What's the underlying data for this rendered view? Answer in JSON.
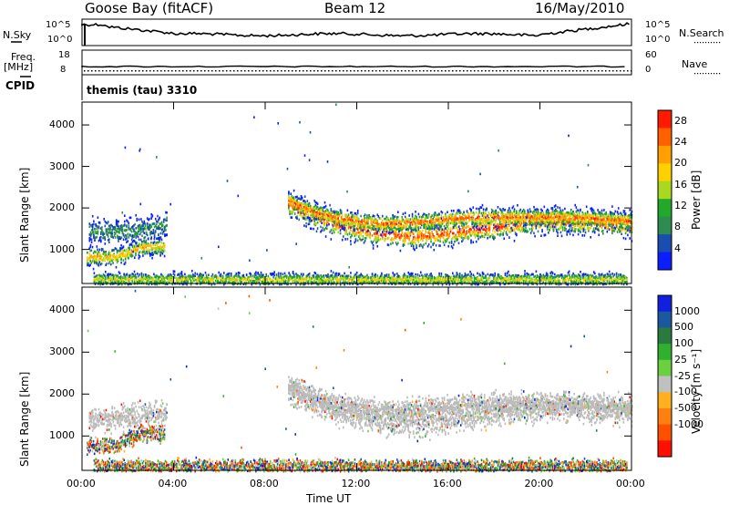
{
  "header": {
    "title": "Goose Bay (fitACF)",
    "beam": "Beam 12",
    "date": "16/May/2010"
  },
  "summary_panel": {
    "n_sky_label": "N.Sky",
    "n_search_label": "N.Search",
    "n_ticks_left": [
      "10^5",
      "10^0"
    ],
    "n_ticks_right": [
      "10^5",
      "10^0"
    ],
    "freq_label": "Freq.",
    "freq_unit": "[MHz]",
    "freq_ticks": [
      "18",
      "8"
    ],
    "nave_label": "Nave",
    "nave_ticks": [
      "60",
      "0"
    ],
    "cpid_label": "CPID",
    "cpid_value": "themis (tau) 3310"
  },
  "colors": {
    "power_scale": [
      "#0a1eff",
      "#1a4db0",
      "#2e8c50",
      "#22a82a",
      "#a8d820",
      "#ffd000",
      "#ffa000",
      "#ff6000",
      "#ff1a00"
    ],
    "velocity_scale": [
      "#1020e0",
      "#1a58a0",
      "#2a7a40",
      "#2fb02f",
      "#6ad040",
      "#c0c0c0",
      "#ffb020",
      "#ff8010",
      "#ff5000",
      "#ff1000"
    ],
    "ground_scatter": "#bbbbbb"
  },
  "chart_data": [
    {
      "type": "heatmap",
      "panel": "power",
      "xlabel": "",
      "ylabel": "Slant Range [km]",
      "x_ticks": [
        "00:00",
        "04:00",
        "08:00",
        "12:00",
        "16:00",
        "20:00",
        "00:00"
      ],
      "xlim_hours": [
        0,
        24
      ],
      "y_ticks": [
        1000,
        2000,
        3000,
        4000
      ],
      "ylim": [
        180,
        4550
      ],
      "colorbar": {
        "label": "Power [dB]",
        "ticks": [
          4,
          8,
          12,
          16,
          20,
          24,
          28
        ],
        "range": [
          0,
          30
        ]
      },
      "bands": [
        {
          "start": 9.0,
          "end": 24.0,
          "range_path": [
            [
              9,
              2100
            ],
            [
              10,
              1850
            ],
            [
              11,
              1650
            ],
            [
              12,
              1500
            ],
            [
              13,
              1400
            ],
            [
              14,
              1350
            ],
            [
              15,
              1350
            ],
            [
              16,
              1420
            ],
            [
              17,
              1500
            ],
            [
              18,
              1550
            ],
            [
              19,
              1650
            ],
            [
              20,
              1700
            ],
            [
              21,
              1700
            ],
            [
              22,
              1680
            ],
            [
              23,
              1650
            ],
            [
              24,
              1600
            ]
          ],
          "width": 300,
          "peak": 28
        },
        {
          "start": 9.0,
          "end": 24.0,
          "range_path": [
            [
              9,
              2200
            ],
            [
              10,
              1950
            ],
            [
              11,
              1800
            ],
            [
              12,
              1700
            ],
            [
              13,
              1650
            ],
            [
              14,
              1650
            ],
            [
              15,
              1700
            ],
            [
              16,
              1750
            ],
            [
              17,
              1800
            ],
            [
              18,
              1800
            ],
            [
              19,
              1800
            ],
            [
              20,
              1800
            ],
            [
              21,
              1800
            ],
            [
              22,
              1780
            ],
            [
              23,
              1750
            ],
            [
              24,
              1700
            ]
          ],
          "width": 220,
          "peak": 26
        },
        {
          "start": 0.2,
          "end": 3.6,
          "range_path": [
            [
              0.2,
              850
            ],
            [
              1.5,
              850
            ],
            [
              2.4,
              1050
            ],
            [
              3.0,
              1100
            ],
            [
              3.6,
              1100
            ]
          ],
          "width": 220,
          "peak": 22
        },
        {
          "start": 0.3,
          "end": 3.7,
          "range_path": [
            [
              0.3,
              1450
            ],
            [
              2,
              1450
            ],
            [
              3.7,
              1600
            ]
          ],
          "width": 300,
          "peak": 10
        },
        {
          "start": 0.5,
          "end": 23.8,
          "range_path": [
            [
              0.5,
              300
            ],
            [
              23.8,
              300
            ]
          ],
          "width": 160,
          "peak": 18
        }
      ]
    },
    {
      "type": "heatmap",
      "panel": "velocity",
      "xlabel": "Time UT",
      "ylabel": "Slant Range [km]",
      "x_ticks": [
        "00:00",
        "04:00",
        "08:00",
        "12:00",
        "16:00",
        "20:00",
        "00:00"
      ],
      "xlim_hours": [
        0,
        24
      ],
      "y_ticks": [
        1000,
        2000,
        3000,
        4000
      ],
      "ylim": [
        180,
        4550
      ],
      "colorbar": {
        "label": "Velocity [m s⁻¹]",
        "ticks": [
          1000,
          500,
          100,
          25,
          -25,
          -100,
          -500,
          -1000
        ]
      },
      "bands": [
        {
          "start": 9.0,
          "end": 24.0,
          "range_path": [
            [
              9,
              2100
            ],
            [
              10,
              1850
            ],
            [
              11,
              1650
            ],
            [
              12,
              1500
            ],
            [
              13,
              1400
            ],
            [
              14,
              1350
            ],
            [
              15,
              1350
            ],
            [
              16,
              1420
            ],
            [
              17,
              1500
            ],
            [
              18,
              1550
            ],
            [
              19,
              1650
            ],
            [
              20,
              1700
            ],
            [
              21,
              1700
            ],
            [
              22,
              1680
            ],
            [
              23,
              1650
            ],
            [
              24,
              1600
            ]
          ],
          "width": 320,
          "dominant": "ground"
        },
        {
          "start": 9.0,
          "end": 24.0,
          "range_path": [
            [
              9,
              2200
            ],
            [
              10,
              1950
            ],
            [
              11,
              1800
            ],
            [
              12,
              1700
            ],
            [
              13,
              1650
            ],
            [
              14,
              1650
            ],
            [
              15,
              1700
            ],
            [
              16,
              1750
            ],
            [
              17,
              1800
            ],
            [
              18,
              1800
            ],
            [
              19,
              1800
            ],
            [
              20,
              1800
            ],
            [
              21,
              1800
            ],
            [
              22,
              1780
            ],
            [
              23,
              1750
            ],
            [
              24,
              1700
            ]
          ],
          "width": 240,
          "dominant": "ground"
        },
        {
          "start": 0.2,
          "end": 3.6,
          "range_path": [
            [
              0.2,
              800
            ],
            [
              1.5,
              800
            ],
            [
              2.4,
              1050
            ],
            [
              3.0,
              1100
            ],
            [
              3.6,
              1100
            ]
          ],
          "width": 200,
          "dominant": "mixed"
        },
        {
          "start": 0.3,
          "end": 3.7,
          "range_path": [
            [
              0.3,
              1450
            ],
            [
              2,
              1450
            ],
            [
              3.7,
              1600
            ]
          ],
          "width": 300,
          "dominant": "ground"
        },
        {
          "start": 0.5,
          "end": 23.8,
          "range_path": [
            [
              0.5,
              300
            ],
            [
              23.8,
              300
            ]
          ],
          "width": 160,
          "dominant": "mixed"
        }
      ]
    }
  ]
}
